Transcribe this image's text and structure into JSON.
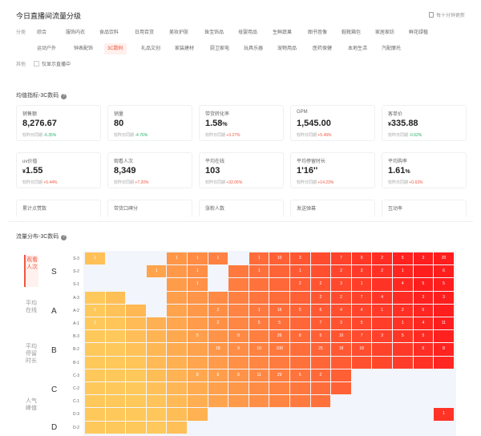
{
  "header": {
    "title": "今日直播间流量分级",
    "update_note": "每十分钟更新"
  },
  "categories": {
    "label": "分类",
    "row1": [
      "综合",
      "服饰内衣",
      "食品饮料",
      "日用百货",
      "美妆护肤",
      "珠宝饰品",
      "母婴用品",
      "生鲜蔬果",
      "图书音像",
      "鞋靴箱包",
      "家居家纺",
      "鲜花绿植"
    ],
    "row2": [
      "运动户外",
      "钟表配饰",
      "3C数码",
      "礼品文创",
      "家装建材",
      "厨卫家电",
      "玩具乐器",
      "宠物用品",
      "医药保健",
      "本地生活",
      "汽配摩托"
    ],
    "active": "3C数码",
    "filter_label": "其他",
    "checkbox_label": "仅显示直播中"
  },
  "metrics_section": {
    "title": "均值指标-3C数码",
    "cards": [
      {
        "label": "销售额",
        "value": "8,276.67",
        "compare": "较昨日同期",
        "change": "-6.35%",
        "dir": "down"
      },
      {
        "label": "销量",
        "value": "80",
        "compare": "较昨日同期",
        "change": "-4.76%",
        "dir": "down"
      },
      {
        "label": "带货转化率",
        "value": "1.58",
        "unit": "%",
        "compare": "较昨日同期",
        "change": "+3.27%",
        "dir": "up"
      },
      {
        "label": "GPM",
        "value": "1,545.00",
        "compare": "较昨日同期",
        "change": "+5.49%",
        "dir": "up"
      },
      {
        "label": "客单价",
        "prefix": "¥",
        "value": "335.88",
        "compare": "较昨日同期",
        "change": "-0.62%",
        "dir": "down"
      },
      {
        "label": "uv价值",
        "prefix": "¥",
        "value": "1.55",
        "compare": "较昨日同期",
        "change": "+5.44%",
        "dir": "up"
      },
      {
        "label": "观看人次",
        "value": "8,349",
        "compare": "较昨日同期",
        "change": "+7.20%",
        "dir": "up"
      },
      {
        "label": "平均在线",
        "value": "103",
        "compare": "较昨日同期",
        "change": "+32.05%",
        "dir": "up"
      },
      {
        "label": "平均停留时长",
        "value": "1'16''",
        "compare": "较昨日同期",
        "change": "+14.23%",
        "dir": "up"
      },
      {
        "label": "平均购率",
        "value": "1.61",
        "unit": "%",
        "compare": "较昨日同期",
        "change": "+0.63%",
        "dir": "up"
      },
      {
        "label": "累计点赞数"
      },
      {
        "label": "带货口碑分"
      },
      {
        "label": "涨粉人数"
      },
      {
        "label": "发送弹幕"
      },
      {
        "label": "互动率"
      }
    ]
  },
  "distribution": {
    "title": "流量分布-3C数码",
    "side_tabs": [
      {
        "label": "观看人次",
        "active": true
      },
      {
        "label": "平均在线",
        "active": false
      },
      {
        "label": "平均停留时长",
        "active": false
      },
      {
        "label": "人气峰值",
        "active": false
      }
    ],
    "grades": [
      "S",
      "A",
      "B",
      "C",
      "D"
    ],
    "rows": [
      {
        "sub": "S-3",
        "cells": [
          "1",
          "",
          "",
          "",
          "1",
          "1",
          "1",
          "",
          "1",
          "10",
          "3",
          "",
          "7",
          "9",
          "2",
          "5",
          "3",
          "20"
        ]
      },
      {
        "sub": "S-2",
        "cells": [
          "",
          "",
          "",
          "1",
          "",
          "1",
          "",
          "",
          "1",
          "",
          "1",
          "",
          "2",
          "3",
          "2",
          "1",
          "",
          "6"
        ]
      },
      {
        "sub": "S-1",
        "cells": [
          "",
          "",
          "",
          "",
          "",
          "1",
          "1",
          "",
          "",
          "",
          "2",
          "2",
          "3",
          "1",
          "",
          "4",
          "5",
          "5"
        ]
      },
      {
        "sub": "A-3",
        "cells": [
          "",
          "",
          "",
          "",
          "",
          "",
          "",
          "",
          "",
          "",
          "",
          "2",
          "2",
          "7",
          "4",
          "",
          "3",
          "3"
        ]
      },
      {
        "sub": "A-2",
        "cells": [
          "1",
          "",
          "",
          "",
          "",
          "",
          "2",
          "",
          "1",
          "16",
          "5",
          "6",
          "4",
          "4",
          "1",
          "2",
          "6",
          ""
        ]
      },
      {
        "sub": "A-1",
        "cells": [
          "1",
          "",
          "",
          "",
          "",
          "",
          "2",
          "",
          "5",
          "5",
          "",
          "7",
          "3",
          "5",
          "",
          "1",
          "4",
          "11"
        ]
      },
      {
        "sub": "B-3",
        "cells": [
          "",
          "",
          "",
          "",
          "",
          "5",
          "",
          "8",
          "",
          "26",
          "8",
          "5",
          "10",
          "7",
          "3",
          "5",
          "5",
          ""
        ]
      },
      {
        "sub": "B-2",
        "cells": [
          "",
          "",
          "",
          "",
          "",
          "",
          "18",
          "9",
          "10",
          "108",
          "",
          "25",
          "18",
          "18",
          "",
          "",
          "6",
          "8"
        ]
      },
      {
        "sub": "B-1",
        "cells": [
          "",
          "",
          "",
          "",
          "",
          "",
          "",
          "",
          "",
          "",
          "",
          "",
          "",
          "",
          "",
          "",
          "",
          ""
        ]
      },
      {
        "sub": "C-3",
        "cells": [
          "",
          "",
          "",
          "",
          "",
          "8",
          "6",
          "8",
          "11",
          "29",
          "5",
          "2",
          "",
          "",
          "",
          "",
          "",
          ""
        ]
      },
      {
        "sub": "C-2",
        "cells": [
          "",
          "",
          "",
          "",
          "",
          "",
          "",
          "",
          "",
          "",
          "",
          "",
          "",
          "",
          "",
          "",
          "",
          ""
        ]
      },
      {
        "sub": "C-1",
        "cells": [
          "",
          "",
          "",
          "",
          "",
          "",
          "",
          "",
          "",
          "",
          "",
          "",
          "",
          "",
          "",
          "",
          "",
          ""
        ]
      },
      {
        "sub": "D-3",
        "cells": [
          "",
          "",
          "",
          "",
          "",
          "",
          "",
          "",
          "",
          "",
          "",
          "",
          "",
          "",
          "",
          "",
          "",
          "1"
        ]
      },
      {
        "sub": "D-2",
        "cells": [
          "",
          "",
          "",
          "",
          "",
          "",
          "",
          "",
          "",
          "",
          "",
          "",
          "",
          "",
          "",
          "",
          "",
          ""
        ]
      }
    ]
  }
}
